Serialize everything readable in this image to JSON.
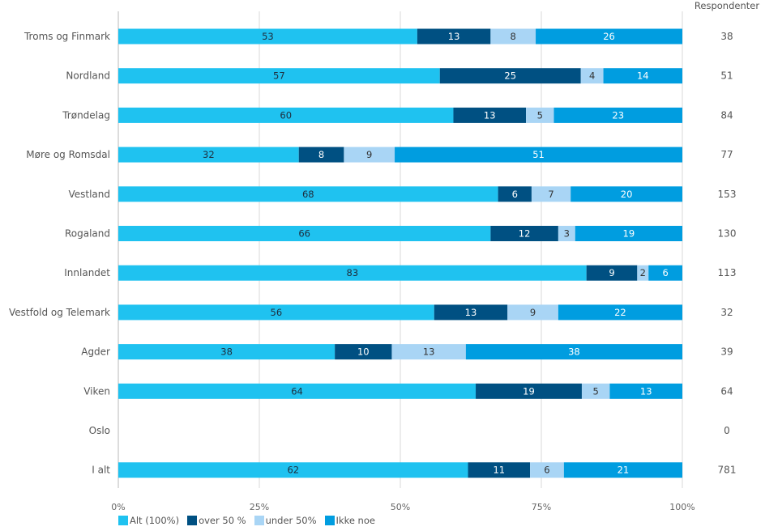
{
  "chart_data": {
    "type": "bar",
    "orientation": "horizontal",
    "stacked": true,
    "normalized": true,
    "title": "",
    "xlabel": "",
    "ylabel": "",
    "xlim": [
      0,
      100
    ],
    "x_ticks": [
      "0%",
      "25%",
      "50%",
      "75%",
      "100%"
    ],
    "grid": true,
    "legend_position": "bottom-left",
    "right_column_header": "Respondenter",
    "categories": [
      "Troms og Finmark",
      "Nordland",
      "Trøndelag",
      "Møre og Romsdal",
      "Vestland",
      "Rogaland",
      "Innlandet",
      "Vestfold og Telemark",
      "Agder",
      "Viken",
      "Oslo",
      "I alt"
    ],
    "respondents": [
      38,
      51,
      84,
      77,
      153,
      130,
      113,
      32,
      39,
      64,
      0,
      781
    ],
    "series": [
      {
        "name": "Alt (100%)",
        "color": "#1fc2f0",
        "label_color": "#1f2d3d",
        "values": [
          53,
          57,
          60,
          32,
          68,
          66,
          83,
          56,
          38,
          64,
          null,
          62
        ]
      },
      {
        "name": "over 50 %",
        "color": "#005082",
        "label_color": "#ffffff",
        "values": [
          13,
          25,
          13,
          8,
          6,
          12,
          9,
          13,
          10,
          19,
          null,
          11
        ]
      },
      {
        "name": "under 50%",
        "color": "#a9d5f5",
        "label_color": "#333333",
        "values": [
          8,
          4,
          5,
          9,
          7,
          3,
          2,
          9,
          13,
          5,
          null,
          6
        ]
      },
      {
        "name": "Ikke noe",
        "color": "#009de0",
        "label_color": "#ffffff",
        "values": [
          26,
          14,
          23,
          51,
          20,
          19,
          6,
          22,
          38,
          13,
          null,
          21
        ]
      }
    ]
  }
}
